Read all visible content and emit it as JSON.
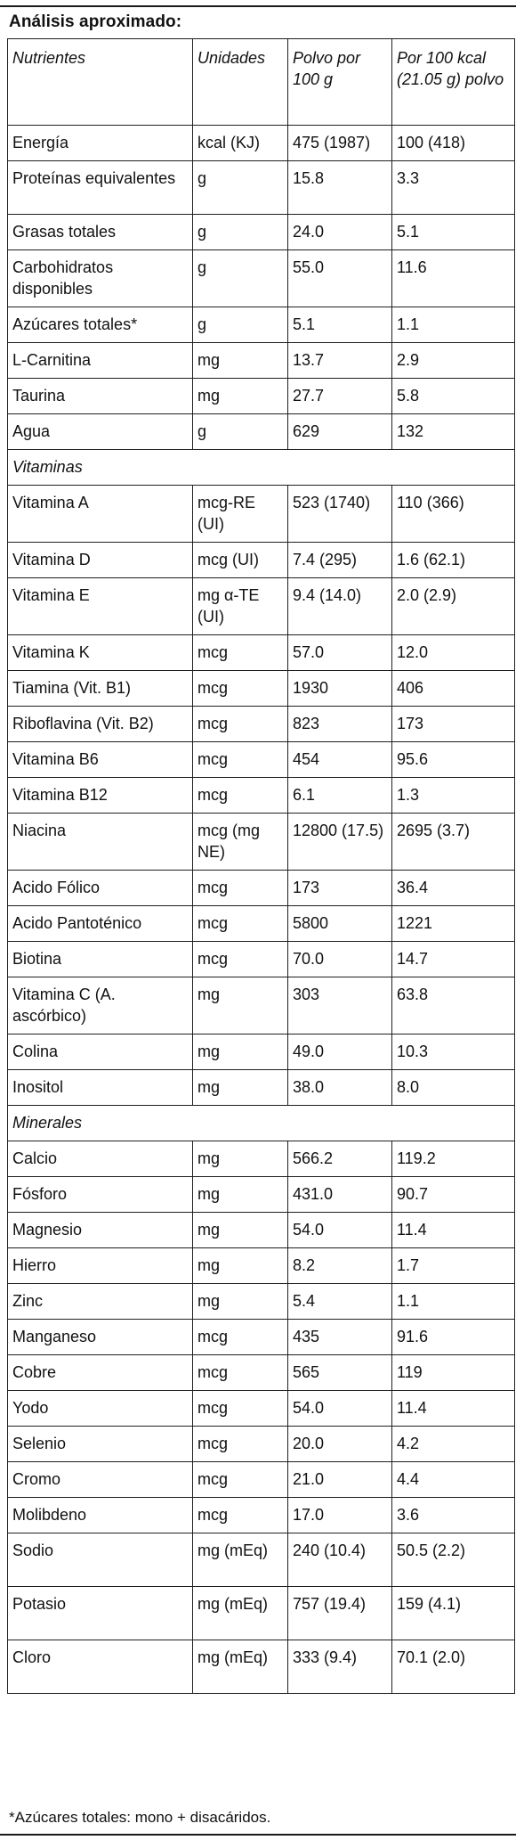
{
  "title": "Análisis aproximado:",
  "headers": {
    "nutrient": "Nutrientes",
    "unit": "Unidades",
    "per_100g": "Polvo por 100 g",
    "per_100kcal": "Por 100 kcal (21.05 g) polvo"
  },
  "rows": [
    {
      "type": "data",
      "lines": 1,
      "nutrient": "Energía",
      "unit": "kcal (KJ)",
      "per_100g": "475 (1987)",
      "per_100kcal": "100 (418)"
    },
    {
      "type": "data",
      "lines": 2,
      "nutrient": "Proteínas equivalentes",
      "unit": "g",
      "per_100g": "15.8",
      "per_100kcal": "3.3"
    },
    {
      "type": "data",
      "lines": 1,
      "nutrient": "Grasas totales",
      "unit": "g",
      "per_100g": "24.0",
      "per_100kcal": "5.1"
    },
    {
      "type": "data",
      "lines": 2,
      "nutrient": "Carbohidratos disponibles",
      "unit": "g",
      "per_100g": "55.0",
      "per_100kcal": "11.6"
    },
    {
      "type": "data",
      "lines": 1,
      "nutrient": "Azúcares totales*",
      "unit": "g",
      "per_100g": "5.1",
      "per_100kcal": "1.1"
    },
    {
      "type": "data",
      "lines": 1,
      "nutrient": "L-Carnitina",
      "unit": "mg",
      "per_100g": "13.7",
      "per_100kcal": "2.9"
    },
    {
      "type": "data",
      "lines": 1,
      "nutrient": "Taurina",
      "unit": "mg",
      "per_100g": "27.7",
      "per_100kcal": "5.8"
    },
    {
      "type": "data",
      "lines": 1,
      "nutrient": "Agua",
      "unit": "g",
      "per_100g": "629",
      "per_100kcal": "132"
    },
    {
      "type": "section",
      "label": "Vitaminas"
    },
    {
      "type": "data",
      "lines": 2,
      "nutrient": "Vitamina A",
      "unit": "mcg-RE (UI)",
      "per_100g": "523 (1740)",
      "per_100kcal": "110 (366)"
    },
    {
      "type": "data",
      "lines": 1,
      "nutrient": "Vitamina D",
      "unit": "mcg (UI)",
      "per_100g": "7.4 (295)",
      "per_100kcal": "1.6 (62.1)"
    },
    {
      "type": "data",
      "lines": 2,
      "nutrient": "Vitamina E",
      "unit": "mg α-TE (UI)",
      "per_100g": "9.4 (14.0)",
      "per_100kcal": "2.0 (2.9)"
    },
    {
      "type": "data",
      "lines": 1,
      "nutrient": "Vitamina K",
      "unit": "mcg",
      "per_100g": "57.0",
      "per_100kcal": "12.0"
    },
    {
      "type": "data",
      "lines": 1,
      "nutrient": "Tiamina (Vit. B1)",
      "unit": "mcg",
      "per_100g": "1930",
      "per_100kcal": "406"
    },
    {
      "type": "data",
      "lines": 1,
      "nutrient": "Riboflavina (Vit. B2)",
      "unit": "mcg",
      "per_100g": "823",
      "per_100kcal": "173"
    },
    {
      "type": "data",
      "lines": 1,
      "nutrient": "Vitamina B6",
      "unit": "mcg",
      "per_100g": "454",
      "per_100kcal": "95.6"
    },
    {
      "type": "data",
      "lines": 1,
      "nutrient": "Vitamina B12",
      "unit": "mcg",
      "per_100g": "6.1",
      "per_100kcal": "1.3"
    },
    {
      "type": "data",
      "lines": 2,
      "nutrient": "Niacina",
      "unit": "mcg (mg NE)",
      "per_100g": "12800 (17.5)",
      "per_100kcal": "2695 (3.7)"
    },
    {
      "type": "data",
      "lines": 1,
      "nutrient": "Acido Fólico",
      "unit": "mcg",
      "per_100g": "173",
      "per_100kcal": "36.4"
    },
    {
      "type": "data",
      "lines": 1,
      "nutrient": "Acido Pantoténico",
      "unit": "mcg",
      "per_100g": "5800",
      "per_100kcal": "1221"
    },
    {
      "type": "data",
      "lines": 1,
      "nutrient": "Biotina",
      "unit": "mcg",
      "per_100g": "70.0",
      "per_100kcal": "14.7"
    },
    {
      "type": "data",
      "lines": 2,
      "nutrient": "Vitamina C (A. ascórbico)",
      "unit": "mg",
      "per_100g": "303",
      "per_100kcal": "63.8"
    },
    {
      "type": "data",
      "lines": 1,
      "nutrient": "Colina",
      "unit": "mg",
      "per_100g": "49.0",
      "per_100kcal": "10.3"
    },
    {
      "type": "data",
      "lines": 1,
      "nutrient": "Inositol",
      "unit": "mg",
      "per_100g": "38.0",
      "per_100kcal": "8.0"
    },
    {
      "type": "section",
      "label": "Minerales"
    },
    {
      "type": "data",
      "lines": 1,
      "nutrient": "Calcio",
      "unit": "mg",
      "per_100g": "566.2",
      "per_100kcal": "119.2"
    },
    {
      "type": "data",
      "lines": 1,
      "nutrient": "Fósforo",
      "unit": "mg",
      "per_100g": "431.0",
      "per_100kcal": "90.7"
    },
    {
      "type": "data",
      "lines": 1,
      "nutrient": "Magnesio",
      "unit": "mg",
      "per_100g": "54.0",
      "per_100kcal": "11.4"
    },
    {
      "type": "data",
      "lines": 1,
      "nutrient": "Hierro",
      "unit": "mg",
      "per_100g": "8.2",
      "per_100kcal": "1.7"
    },
    {
      "type": "data",
      "lines": 1,
      "nutrient": "Zinc",
      "unit": "mg",
      "per_100g": "5.4",
      "per_100kcal": "1.1"
    },
    {
      "type": "data",
      "lines": 1,
      "nutrient": "Manganeso",
      "unit": "mcg",
      "per_100g": "435",
      "per_100kcal": "91.6"
    },
    {
      "type": "data",
      "lines": 1,
      "nutrient": "Cobre",
      "unit": "mcg",
      "per_100g": "565",
      "per_100kcal": "119"
    },
    {
      "type": "data",
      "lines": 1,
      "nutrient": "Yodo",
      "unit": "mcg",
      "per_100g": "54.0",
      "per_100kcal": "11.4"
    },
    {
      "type": "data",
      "lines": 1,
      "nutrient": "Selenio",
      "unit": "mcg",
      "per_100g": "20.0",
      "per_100kcal": "4.2"
    },
    {
      "type": "data",
      "lines": 1,
      "nutrient": "Cromo",
      "unit": "mcg",
      "per_100g": "21.0",
      "per_100kcal": "4.4"
    },
    {
      "type": "data",
      "lines": 1,
      "nutrient": "Molibdeno",
      "unit": "mcg",
      "per_100g": "17.0",
      "per_100kcal": "3.6"
    },
    {
      "type": "data",
      "lines": 2,
      "nutrient": "Sodio",
      "unit": "mg (mEq)",
      "per_100g": "240 (10.4)",
      "per_100kcal": "50.5 (2.2)"
    },
    {
      "type": "data",
      "lines": 2,
      "nutrient": "Potasio",
      "unit": "mg (mEq)",
      "per_100g": "757 (19.4)",
      "per_100kcal": "159 (4.1)"
    },
    {
      "type": "data",
      "lines": 2,
      "nutrient": "Cloro",
      "unit": "mg (mEq)",
      "per_100g": "333 (9.4)",
      "per_100kcal": "70.1 (2.0)"
    }
  ],
  "footnote": "*Azúcares totales: mono + disacáridos."
}
